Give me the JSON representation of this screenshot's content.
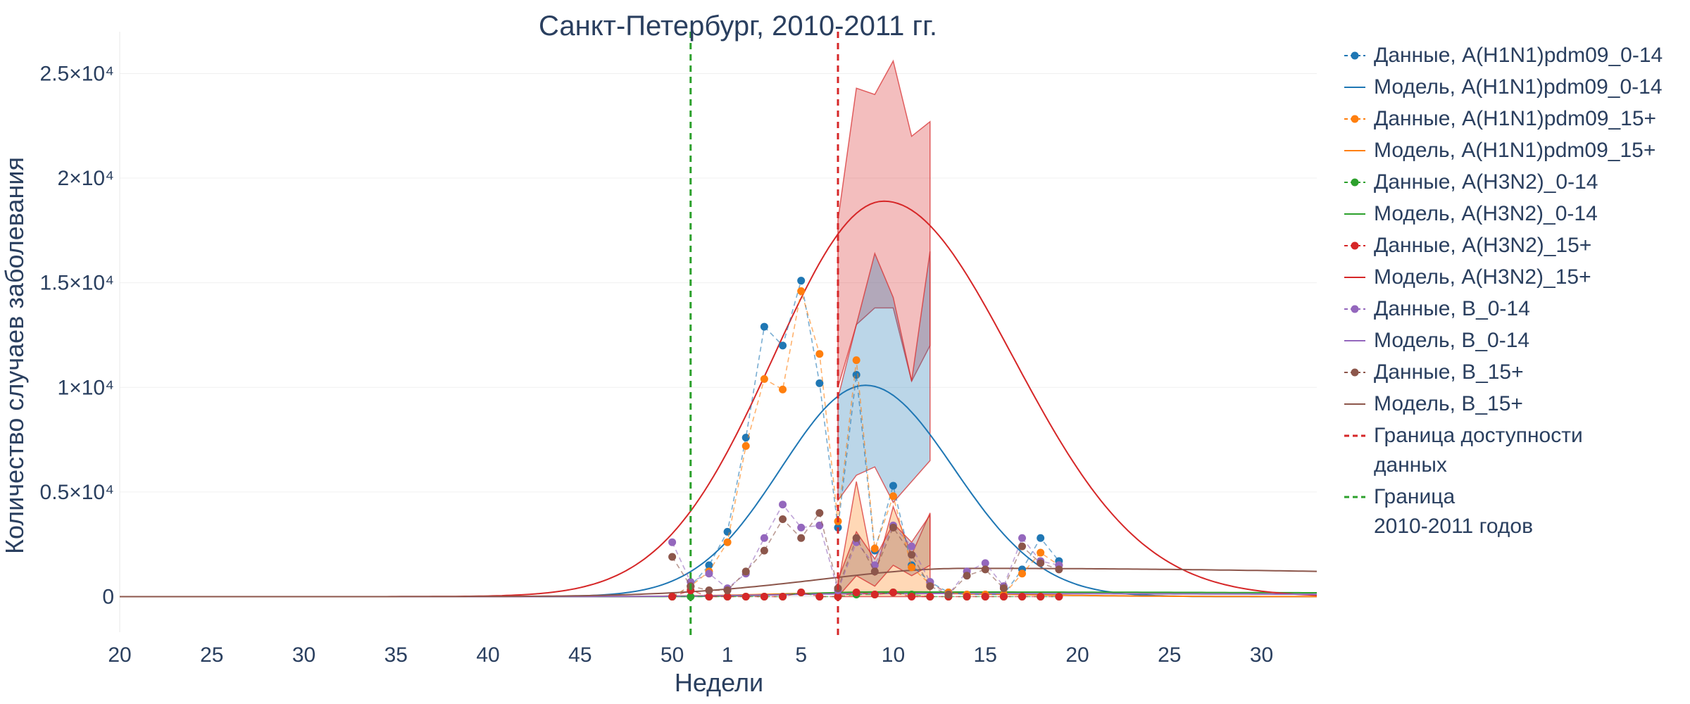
{
  "chart_data": {
    "type": "line",
    "title": "Санкт-Петербург, 2010-2011 гг.",
    "xlabel": "Недели",
    "ylabel": "Количество случаев заболевания",
    "x_tick_labels": [
      "20",
      "25",
      "30",
      "35",
      "40",
      "45",
      "50",
      "1",
      "5",
      "10",
      "15",
      "20",
      "25",
      "30"
    ],
    "y_tick_labels": [
      "0",
      "0.5×10⁴",
      "1×10⁴",
      "1.5×10⁴",
      "2×10⁴",
      "2.5×10⁴"
    ],
    "y_ticks": [
      0,
      5000,
      10000,
      15000,
      20000,
      25000
    ],
    "xlim": [
      20,
      85
    ],
    "ylim": [
      -1700,
      27000
    ],
    "grid": "horizontal",
    "legend_position": "right",
    "vlines": [
      {
        "x": 51,
        "color": "#2ca02c",
        "label": "Граница\n2010-2011 годов"
      },
      {
        "x": 59,
        "color": "#d62728",
        "label": "Граница доступности\n данных"
      }
    ],
    "series": [
      {
        "name": "Данные, A(H1N1)pdm09_0-14",
        "kind": "data",
        "color": "#1f77b4",
        "x": [
          50,
          51,
          52,
          53,
          54,
          55,
          56,
          57,
          58,
          59,
          60,
          61,
          62,
          63,
          64,
          65,
          66,
          67,
          68,
          69,
          70,
          71
        ],
        "y": [
          0,
          500,
          1500,
          3100,
          7600,
          12900,
          12000,
          15100,
          10200,
          3300,
          10600,
          2200,
          5300,
          1500,
          700,
          200,
          100,
          100,
          100,
          1300,
          2800,
          1700
        ]
      },
      {
        "name": "Модель, A(H1N1)pdm09_0-14",
        "kind": "model",
        "color": "#1f77b4",
        "curve": {
          "peak": 10100,
          "center": 60.5,
          "sigma_left": 4.6,
          "sigma_right": 4.8
        }
      },
      {
        "name": "Данные, A(H1N1)pdm09_15+",
        "kind": "data",
        "color": "#ff7f0e",
        "x": [
          50,
          51,
          52,
          53,
          54,
          55,
          56,
          57,
          58,
          59,
          60,
          61,
          62,
          63,
          64,
          65,
          66,
          67,
          68,
          69,
          70,
          71
        ],
        "y": [
          0,
          500,
          1200,
          2600,
          7200,
          10400,
          9900,
          14600,
          11600,
          3600,
          11300,
          2300,
          4800,
          1400,
          600,
          200,
          100,
          100,
          100,
          1100,
          2100,
          1500
        ]
      },
      {
        "name": "Модель, A(H1N1)pdm09_15+",
        "kind": "model",
        "color": "#ff7f0e",
        "curve": {
          "peak": 180,
          "center": 60,
          "sigma_left": 5,
          "sigma_right": 8
        }
      },
      {
        "name": "Данные, A(H3N2)_0-14",
        "kind": "data",
        "color": "#2ca02c",
        "x": [
          50,
          51,
          52,
          53,
          54,
          55,
          56,
          57,
          58,
          59,
          60,
          61,
          62,
          63,
          64,
          65,
          66,
          67,
          68,
          69,
          70,
          71
        ],
        "y": [
          0,
          0,
          0,
          0,
          0,
          0,
          0,
          200,
          0,
          0,
          100,
          100,
          200,
          100,
          0,
          0,
          0,
          0,
          0,
          0,
          0,
          0
        ]
      },
      {
        "name": "Модель, A(H3N2)_0-14",
        "kind": "model",
        "color": "#2ca02c",
        "curve": {
          "peak": 220,
          "center": 61,
          "sigma_left": 4,
          "sigma_right": 40
        }
      },
      {
        "name": "Данные, A(H3N2)_15+",
        "kind": "data",
        "color": "#d62728",
        "x": [
          50,
          51,
          52,
          53,
          54,
          55,
          56,
          57,
          58,
          59,
          60,
          61,
          62,
          63,
          64,
          65,
          66,
          67,
          68,
          69,
          70,
          71
        ],
        "y": [
          0,
          300,
          0,
          0,
          0,
          0,
          0,
          200,
          0,
          0,
          200,
          100,
          200,
          0,
          0,
          0,
          0,
          0,
          0,
          0,
          0,
          0
        ]
      },
      {
        "name": "Модель, A(H3N2)_15+",
        "kind": "model",
        "color": "#d62728",
        "curve": {
          "peak": 18900,
          "center": 61.5,
          "sigma_left": 6,
          "sigma_right": 7
        }
      },
      {
        "name": "Данные, B_0-14",
        "kind": "data",
        "color": "#9467bd",
        "x": [
          50,
          51,
          52,
          53,
          54,
          55,
          56,
          57,
          58,
          59,
          60,
          61,
          62,
          63,
          64,
          65,
          66,
          67,
          68,
          69,
          70,
          71
        ],
        "y": [
          2600,
          700,
          1100,
          400,
          1100,
          2800,
          4400,
          3300,
          3400,
          300,
          2600,
          1500,
          3400,
          2400,
          700,
          100,
          1200,
          1600,
          500,
          2800,
          1700,
          1500
        ]
      },
      {
        "name": "Модель, B_0-14",
        "kind": "model",
        "color": "#9467bd",
        "curve": {
          "peak": 150,
          "center": 62,
          "sigma_left": 6,
          "sigma_right": 30
        }
      },
      {
        "name": "Данные, B_15+",
        "kind": "data",
        "color": "#8c564b",
        "x": [
          50,
          51,
          52,
          53,
          54,
          55,
          56,
          57,
          58,
          59,
          60,
          61,
          62,
          63,
          64,
          65,
          66,
          67,
          68,
          69,
          70,
          71
        ],
        "y": [
          1900,
          500,
          300,
          300,
          1200,
          2200,
          3700,
          2800,
          4000,
          400,
          2800,
          1200,
          3300,
          2000,
          500,
          100,
          1000,
          1300,
          400,
          2400,
          1600,
          1300
        ]
      },
      {
        "name": "Модель, B_15+",
        "kind": "model",
        "color": "#8c564b",
        "curve": {
          "peak": 1350,
          "center": 66,
          "sigma_left": 8,
          "sigma_right": 40
        }
      }
    ],
    "bands": [
      {
        "name": "band-h3n2-15",
        "color": "#d62728",
        "x": [
          59,
          60,
          61,
          62,
          63,
          64
        ],
        "upper": [
          18000,
          24300,
          24000,
          25600,
          22000,
          22700
        ],
        "lower": [
          10000,
          13000,
          13800,
          13800,
          10300,
          12000
        ]
      },
      {
        "name": "band-h1n1-0-14",
        "color": "#1f77b4",
        "x": [
          59,
          60,
          61,
          62,
          63,
          64
        ],
        "upper": [
          9500,
          13000,
          16400,
          14300,
          10300,
          16500
        ],
        "lower": [
          4600,
          5800,
          6200,
          4500,
          5500,
          6500
        ]
      },
      {
        "name": "band-h1n1-15",
        "color": "#ff7f0e",
        "x": [
          59,
          60,
          61,
          62,
          63,
          64
        ],
        "upper": [
          500,
          5500,
          1000,
          4300,
          2000,
          4000
        ],
        "lower": [
          0,
          0,
          0,
          0,
          0,
          0
        ]
      },
      {
        "name": "band-b",
        "color": "#8c564b",
        "x": [
          59,
          60,
          61,
          62,
          63,
          64
        ],
        "upper": [
          800,
          3100,
          1800,
          3500,
          2600,
          3900
        ],
        "lower": [
          0,
          1000,
          500,
          1500,
          1000,
          1500
        ]
      }
    ]
  },
  "legend": {
    "items": [
      {
        "label": "Данные, A(H1N1)pdm09_0-14",
        "color": "#1f77b4",
        "kind": "data"
      },
      {
        "label": "Модель, A(H1N1)pdm09_0-14",
        "color": "#1f77b4",
        "kind": "model"
      },
      {
        "label": "Данные, A(H1N1)pdm09_15+",
        "color": "#ff7f0e",
        "kind": "data"
      },
      {
        "label": "Модель, A(H1N1)pdm09_15+",
        "color": "#ff7f0e",
        "kind": "model"
      },
      {
        "label": "Данные, A(H3N2)_0-14",
        "color": "#2ca02c",
        "kind": "data"
      },
      {
        "label": "Модель, A(H3N2)_0-14",
        "color": "#2ca02c",
        "kind": "model"
      },
      {
        "label": "Данные, A(H3N2)_15+",
        "color": "#d62728",
        "kind": "data"
      },
      {
        "label": "Модель, A(H3N2)_15+",
        "color": "#d62728",
        "kind": "model"
      },
      {
        "label": "Данные, B_0-14",
        "color": "#9467bd",
        "kind": "data"
      },
      {
        "label": "Модель, B_0-14",
        "color": "#9467bd",
        "kind": "model"
      },
      {
        "label": "Данные, B_15+",
        "color": "#8c564b",
        "kind": "data"
      },
      {
        "label": "Модель, B_15+",
        "color": "#8c564b",
        "kind": "model"
      },
      {
        "label": "Граница доступности\n данных",
        "color": "#d62728",
        "kind": "vline"
      },
      {
        "label": "Граница\n2010-2011 годов",
        "color": "#2ca02c",
        "kind": "vline"
      }
    ]
  }
}
